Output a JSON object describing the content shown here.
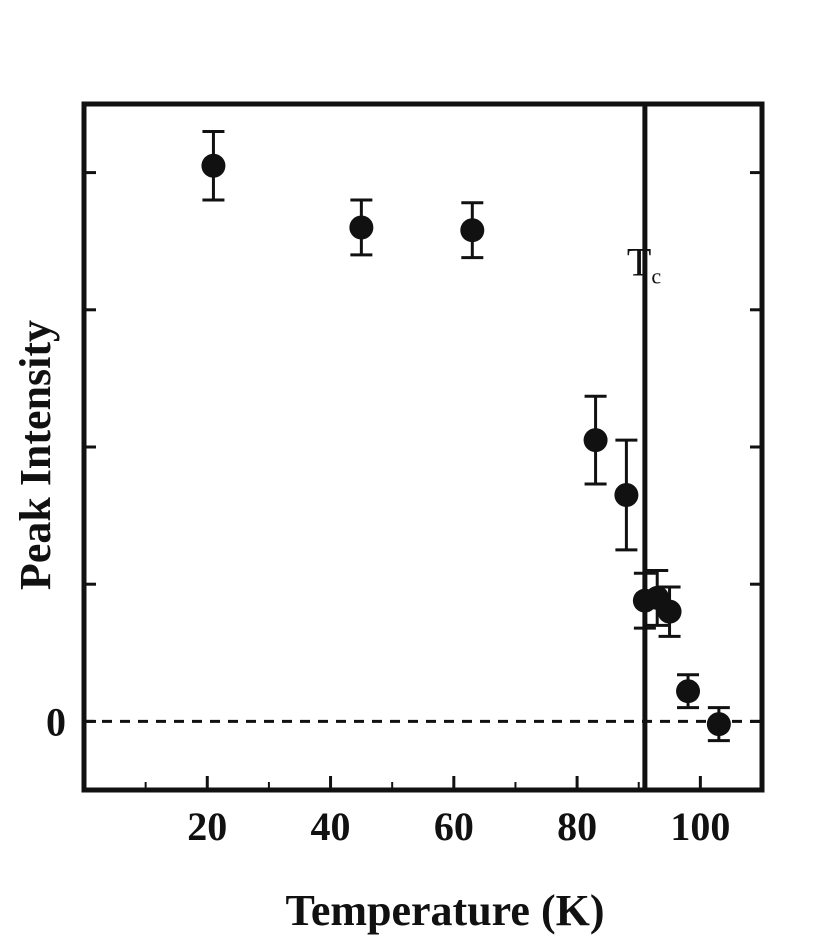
{
  "chart_data": {
    "type": "scatter",
    "xlabel": "Temperature (K)",
    "ylabel": "Peak Intensity",
    "xlim": [
      0,
      110
    ],
    "ylim": [
      -0.5,
      4.5
    ],
    "x_ticks": [
      20,
      40,
      60,
      80,
      100
    ],
    "y_tick_labels": [
      {
        "value": 0,
        "label": "0"
      }
    ],
    "grid": false,
    "zero_line": {
      "y": 0,
      "style": "dashed"
    },
    "annotation": {
      "label": "T",
      "subscript": "c",
      "x": 91
    },
    "points": [
      {
        "x": 21,
        "y": 4.05,
        "err": 0.25
      },
      {
        "x": 45,
        "y": 3.6,
        "err": 0.2
      },
      {
        "x": 63,
        "y": 3.58,
        "err": 0.2
      },
      {
        "x": 83,
        "y": 2.05,
        "err": 0.32
      },
      {
        "x": 88,
        "y": 1.65,
        "err": 0.4
      },
      {
        "x": 91,
        "y": 0.88,
        "err": 0.2
      },
      {
        "x": 93,
        "y": 0.9,
        "err": 0.2
      },
      {
        "x": 95,
        "y": 0.8,
        "err": 0.18
      },
      {
        "x": 98,
        "y": 0.22,
        "err": 0.12
      },
      {
        "x": 103,
        "y": -0.02,
        "err": 0.12
      }
    ]
  }
}
